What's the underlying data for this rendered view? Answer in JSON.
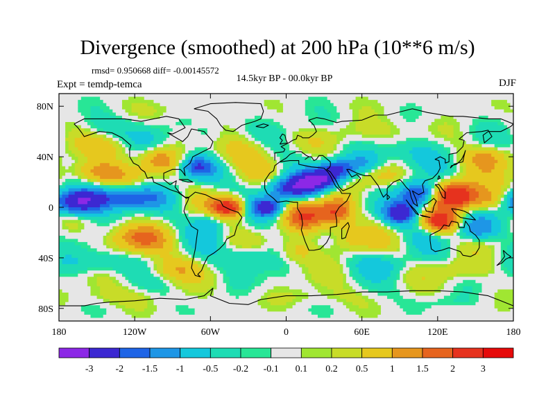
{
  "title": "Divergence (smoothed) at 200 hPa (10**6 m/s)",
  "stats": "rmsd= 0.950668 diff= -0.00145572",
  "experiment": "Expt = temdp-temca",
  "period": "14.5kyr BP - 00.0kyr BP",
  "season": "DJF",
  "chart_data": {
    "type": "heatmap",
    "projection": "cylindrical-equidistant",
    "xlim": [
      -180,
      180
    ],
    "ylim": [
      -90,
      90
    ],
    "x_ticks": [
      {
        "value": -180,
        "label": "180"
      },
      {
        "value": -120,
        "label": "120W"
      },
      {
        "value": -60,
        "label": "60W"
      },
      {
        "value": 0,
        "label": "0"
      },
      {
        "value": 60,
        "label": "60E"
      },
      {
        "value": 120,
        "label": "120E"
      },
      {
        "value": 180,
        "label": "180"
      }
    ],
    "y_ticks": [
      {
        "value": 80,
        "label": "80N"
      },
      {
        "value": 40,
        "label": "40N"
      },
      {
        "value": 0,
        "label": "0"
      },
      {
        "value": -40,
        "label": "40S"
      },
      {
        "value": -80,
        "label": "80S"
      }
    ],
    "colorbar": {
      "labels": [
        "-3",
        "-2",
        "-1.5",
        "-1",
        "-0.5",
        "-0.2",
        "-0.1",
        "0.1",
        "0.2",
        "0.5",
        "1",
        "1.5",
        "2",
        "3"
      ],
      "colors": [
        "#8c28e6",
        "#3c28d2",
        "#1e64e6",
        "#1e96e6",
        "#14c8dc",
        "#1edcb4",
        "#28e696",
        "#e6e6e6",
        "#a0e632",
        "#c8dc28",
        "#e6c81e",
        "#e6961e",
        "#e6641e",
        "#e6321e",
        "#e60a0a"
      ]
    },
    "features": [
      {
        "lon": -165,
        "lat": 4,
        "value": -3.2,
        "sx": 16,
        "sy": 7
      },
      {
        "lon": -125,
        "lat": 8,
        "value": -1.8,
        "sx": 20,
        "sy": 6
      },
      {
        "lon": -150,
        "lat": 28,
        "value": 1.6,
        "sx": 18,
        "sy": 7
      },
      {
        "lon": -100,
        "lat": 38,
        "value": 1.4,
        "sx": 10,
        "sy": 6
      },
      {
        "lon": -140,
        "lat": 48,
        "value": 0.9,
        "sx": 16,
        "sy": 6
      },
      {
        "lon": -145,
        "lat": 65,
        "value": -0.7,
        "sx": 18,
        "sy": 6
      },
      {
        "lon": -70,
        "lat": 32,
        "value": -2.0,
        "sx": 9,
        "sy": 6
      },
      {
        "lon": -110,
        "lat": 55,
        "value": -0.8,
        "sx": 12,
        "sy": 7
      },
      {
        "lon": -60,
        "lat": 60,
        "value": -0.6,
        "sx": 10,
        "sy": 7
      },
      {
        "lon": -90,
        "lat": 78,
        "value": 0.5,
        "sx": 20,
        "sy": 5
      },
      {
        "lon": -35,
        "lat": 45,
        "value": 1.0,
        "sx": 14,
        "sy": 8
      },
      {
        "lon": -45,
        "lat": 0,
        "value": 2.6,
        "sx": 10,
        "sy": 6
      },
      {
        "lon": -60,
        "lat": -12,
        "value": -1.0,
        "sx": 10,
        "sy": 8
      },
      {
        "lon": -15,
        "lat": 0,
        "value": -2.2,
        "sx": 9,
        "sy": 5
      },
      {
        "lon": 5,
        "lat": 15,
        "value": -2.6,
        "sx": 14,
        "sy": 6
      },
      {
        "lon": 25,
        "lat": 22,
        "value": -2.8,
        "sx": 12,
        "sy": 5
      },
      {
        "lon": 40,
        "lat": 30,
        "value": -2.3,
        "sx": 10,
        "sy": 5
      },
      {
        "lon": 60,
        "lat": 35,
        "value": -1.2,
        "sx": 12,
        "sy": 6
      },
      {
        "lon": 15,
        "lat": -8,
        "value": 1.6,
        "sx": 12,
        "sy": 8
      },
      {
        "lon": 40,
        "lat": -3,
        "value": 1.9,
        "sx": 10,
        "sy": 8
      },
      {
        "lon": 10,
        "lat": -35,
        "value": 1.0,
        "sx": 10,
        "sy": 7
      },
      {
        "lon": 50,
        "lat": -25,
        "value": 0.8,
        "sx": 12,
        "sy": 8
      },
      {
        "lon": 90,
        "lat": -5,
        "value": -2.4,
        "sx": 9,
        "sy": 6
      },
      {
        "lon": 105,
        "lat": 10,
        "value": -2.5,
        "sx": 10,
        "sy": 7
      },
      {
        "lon": 78,
        "lat": 25,
        "value": 0.7,
        "sx": 10,
        "sy": 6
      },
      {
        "lon": 135,
        "lat": 10,
        "value": 3.0,
        "sx": 12,
        "sy": 8
      },
      {
        "lon": 122,
        "lat": -12,
        "value": 2.2,
        "sx": 10,
        "sy": 6
      },
      {
        "lon": 160,
        "lat": 5,
        "value": 1.5,
        "sx": 12,
        "sy": 7
      },
      {
        "lon": 150,
        "lat": -18,
        "value": -1.6,
        "sx": 12,
        "sy": 7
      },
      {
        "lon": 160,
        "lat": 40,
        "value": 1.2,
        "sx": 14,
        "sy": 6
      },
      {
        "lon": 100,
        "lat": 45,
        "value": -0.9,
        "sx": 18,
        "sy": 8
      },
      {
        "lon": 60,
        "lat": 60,
        "value": 0.9,
        "sx": 20,
        "sy": 7
      },
      {
        "lon": 20,
        "lat": 65,
        "value": -0.7,
        "sx": 14,
        "sy": 6
      },
      {
        "lon": -120,
        "lat": -25,
        "value": 1.4,
        "sx": 18,
        "sy": 8
      },
      {
        "lon": -150,
        "lat": -45,
        "value": -0.9,
        "sx": 20,
        "sy": 7
      },
      {
        "lon": -90,
        "lat": -50,
        "value": 1.1,
        "sx": 16,
        "sy": 6
      },
      {
        "lon": -30,
        "lat": -40,
        "value": -1.0,
        "sx": 14,
        "sy": 7
      },
      {
        "lon": 80,
        "lat": -45,
        "value": -0.8,
        "sx": 18,
        "sy": 7
      },
      {
        "lon": 140,
        "lat": -50,
        "value": 0.8,
        "sx": 18,
        "sy": 6
      },
      {
        "lon": -140,
        "lat": -72,
        "value": 0.7,
        "sx": 25,
        "sy": 5
      },
      {
        "lon": 20,
        "lat": -72,
        "value": 0.6,
        "sx": 25,
        "sy": 5
      },
      {
        "lon": 130,
        "lat": -75,
        "value": -0.5,
        "sx": 20,
        "sy": 4
      }
    ]
  }
}
